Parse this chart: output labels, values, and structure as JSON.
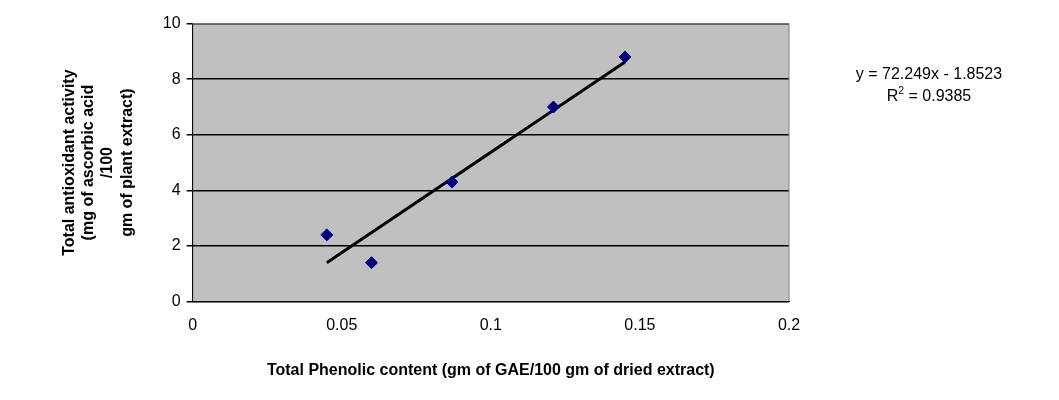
{
  "chart_data": {
    "type": "scatter",
    "xlabel": "Total Phenolic content (gm of GAE/100 gm of dried extract)",
    "ylabel": "Total antioxidant activity\n(mg of ascorbic acid\n/100\ngm of plant extract)",
    "series": [
      {
        "color": "#000080",
        "x": [
          0.045,
          0.06,
          0.087,
          0.121,
          0.145
        ],
        "values": [
          2.4,
          1.4,
          4.3,
          7.0,
          8.8
        ],
        "marker": "diamond"
      },
      {
        "type": "line",
        "color": "#000000",
        "x": [
          0.045,
          0.145
        ],
        "values": [
          1.4,
          8.62
        ],
        "marker": "none",
        "line_style": "solid"
      }
    ],
    "xlim": [
      0,
      0.2
    ],
    "xticks": [
      0,
      0.05,
      0.1,
      0.15,
      0.2
    ],
    "ylim": [
      0,
      10
    ],
    "yticks": [
      0,
      2,
      4,
      6,
      8,
      10
    ],
    "grid": "y",
    "legend": false,
    "annotations": [
      "y = 72.249x - 1.8523",
      "R$^{2}$ = 0.9385"
    ]
  }
}
